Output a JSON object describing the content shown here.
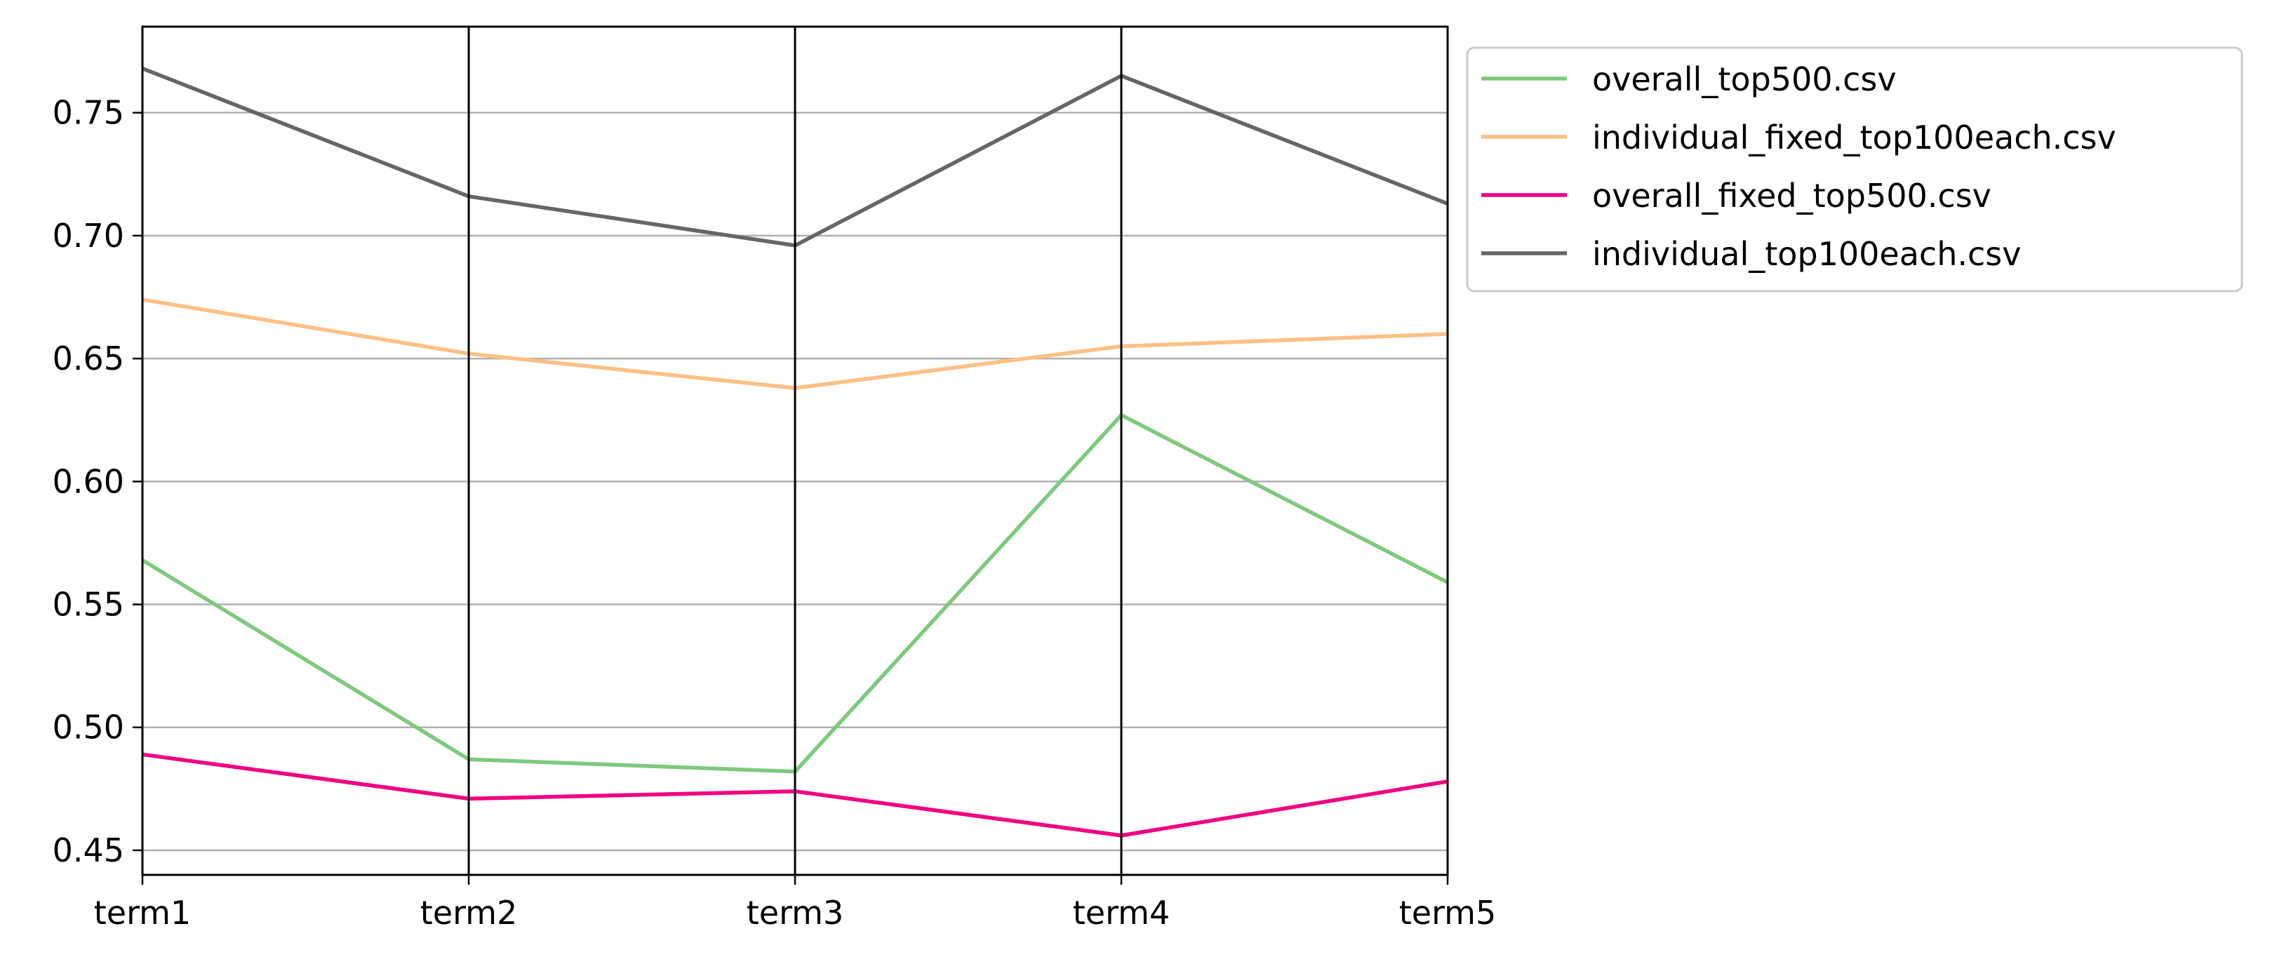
{
  "chart_data": {
    "type": "line",
    "subtype": "parallel-coordinates",
    "categories": [
      "term1",
      "term2",
      "term3",
      "term4",
      "term5"
    ],
    "ylim": [
      0.44,
      0.785
    ],
    "yticks": [
      0.45,
      0.5,
      0.55,
      0.6,
      0.65,
      0.7,
      0.75
    ],
    "ytick_labels": [
      "0.45",
      "0.50",
      "0.55",
      "0.60",
      "0.65",
      "0.70",
      "0.75"
    ],
    "grid": {
      "horizontal": true,
      "vertical_axes": true
    },
    "legend_position": "outside top-right",
    "series": [
      {
        "name": "overall_top500.csv",
        "color": "#7fc97f",
        "values": [
          0.568,
          0.487,
          0.482,
          0.627,
          0.559
        ]
      },
      {
        "name": "individual_fixed_top100each.csv",
        "color": "#fdc086",
        "values": [
          0.674,
          0.652,
          0.638,
          0.655,
          0.66
        ]
      },
      {
        "name": "overall_fixed_top500.csv",
        "color": "#f0027f",
        "values": [
          0.489,
          0.471,
          0.474,
          0.456,
          0.478
        ]
      },
      {
        "name": "individual_top100each.csv",
        "color": "#666666",
        "values": [
          0.768,
          0.716,
          0.696,
          0.765,
          0.713
        ]
      }
    ]
  }
}
